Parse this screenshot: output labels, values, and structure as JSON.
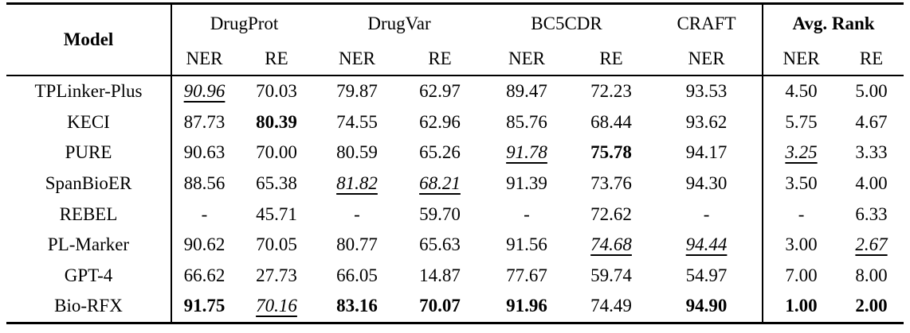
{
  "table": {
    "model_label": "Model",
    "groups": [
      {
        "label": "DrugProt",
        "span": 2
      },
      {
        "label": "DrugVar",
        "span": 2
      },
      {
        "label": "BC5CDR",
        "span": 2
      },
      {
        "label": "CRAFT",
        "span": 1
      },
      {
        "label": "Avg. Rank",
        "span": 2
      }
    ],
    "subheaders": [
      "NER",
      "RE",
      "NER",
      "RE",
      "NER",
      "RE",
      "NER",
      "NER",
      "RE"
    ],
    "rows": [
      {
        "model": "TPLinker-Plus",
        "cells": [
          {
            "v": "90.96",
            "s": "iu"
          },
          {
            "v": "70.03",
            "s": "n"
          },
          {
            "v": "79.87",
            "s": "n"
          },
          {
            "v": "62.97",
            "s": "n"
          },
          {
            "v": "89.47",
            "s": "n"
          },
          {
            "v": "72.23",
            "s": "n"
          },
          {
            "v": "93.53",
            "s": "n"
          },
          {
            "v": "4.50",
            "s": "n"
          },
          {
            "v": "5.00",
            "s": "n"
          }
        ]
      },
      {
        "model": "KECI",
        "cells": [
          {
            "v": "87.73",
            "s": "n"
          },
          {
            "v": "80.39",
            "s": "b"
          },
          {
            "v": "74.55",
            "s": "n"
          },
          {
            "v": "62.96",
            "s": "n"
          },
          {
            "v": "85.76",
            "s": "n"
          },
          {
            "v": "68.44",
            "s": "n"
          },
          {
            "v": "93.62",
            "s": "n"
          },
          {
            "v": "5.75",
            "s": "n"
          },
          {
            "v": "4.67",
            "s": "n"
          }
        ]
      },
      {
        "model": "PURE",
        "cells": [
          {
            "v": "90.63",
            "s": "n"
          },
          {
            "v": "70.00",
            "s": "n"
          },
          {
            "v": "80.59",
            "s": "n"
          },
          {
            "v": "65.26",
            "s": "n"
          },
          {
            "v": "91.78",
            "s": "iu"
          },
          {
            "v": "75.78",
            "s": "b"
          },
          {
            "v": "94.17",
            "s": "n"
          },
          {
            "v": "3.25",
            "s": "iu"
          },
          {
            "v": "3.33",
            "s": "n"
          }
        ]
      },
      {
        "model": "SpanBioER",
        "cells": [
          {
            "v": "88.56",
            "s": "n"
          },
          {
            "v": "65.38",
            "s": "n"
          },
          {
            "v": "81.82",
            "s": "iu"
          },
          {
            "v": "68.21",
            "s": "iu"
          },
          {
            "v": "91.39",
            "s": "n"
          },
          {
            "v": "73.76",
            "s": "n"
          },
          {
            "v": "94.30",
            "s": "n"
          },
          {
            "v": "3.50",
            "s": "n"
          },
          {
            "v": "4.00",
            "s": "n"
          }
        ]
      },
      {
        "model": "REBEL",
        "cells": [
          {
            "v": "-",
            "s": "n"
          },
          {
            "v": "45.71",
            "s": "n"
          },
          {
            "v": "-",
            "s": "n"
          },
          {
            "v": "59.70",
            "s": "n"
          },
          {
            "v": "-",
            "s": "n"
          },
          {
            "v": "72.62",
            "s": "n"
          },
          {
            "v": "-",
            "s": "n"
          },
          {
            "v": "-",
            "s": "n"
          },
          {
            "v": "6.33",
            "s": "n"
          }
        ]
      },
      {
        "model": "PL-Marker",
        "cells": [
          {
            "v": "90.62",
            "s": "n"
          },
          {
            "v": "70.05",
            "s": "n"
          },
          {
            "v": "80.77",
            "s": "n"
          },
          {
            "v": "65.63",
            "s": "n"
          },
          {
            "v": "91.56",
            "s": "n"
          },
          {
            "v": "74.68",
            "s": "iu"
          },
          {
            "v": "94.44",
            "s": "iu"
          },
          {
            "v": "3.00",
            "s": "n"
          },
          {
            "v": "2.67",
            "s": "iu"
          }
        ]
      },
      {
        "model": "GPT-4",
        "cells": [
          {
            "v": "66.62",
            "s": "n"
          },
          {
            "v": "27.73",
            "s": "n"
          },
          {
            "v": "66.05",
            "s": "n"
          },
          {
            "v": "14.87",
            "s": "n"
          },
          {
            "v": "77.67",
            "s": "n"
          },
          {
            "v": "59.74",
            "s": "n"
          },
          {
            "v": "54.97",
            "s": "n"
          },
          {
            "v": "7.00",
            "s": "n"
          },
          {
            "v": "8.00",
            "s": "n"
          }
        ]
      },
      {
        "model": "Bio-RFX",
        "cells": [
          {
            "v": "91.75",
            "s": "b"
          },
          {
            "v": "70.16",
            "s": "iu"
          },
          {
            "v": "83.16",
            "s": "b"
          },
          {
            "v": "70.07",
            "s": "b"
          },
          {
            "v": "91.96",
            "s": "b"
          },
          {
            "v": "74.49",
            "s": "n"
          },
          {
            "v": "94.90",
            "s": "b"
          },
          {
            "v": "1.00",
            "s": "b"
          },
          {
            "v": "2.00",
            "s": "b"
          }
        ]
      }
    ],
    "colors": {
      "text": "#000000",
      "background": "#ffffff",
      "rule": "#000000"
    }
  }
}
